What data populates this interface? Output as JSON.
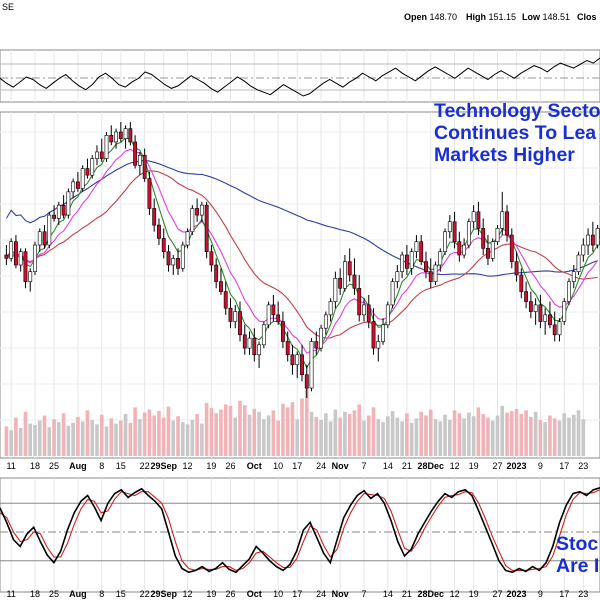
{
  "ticker_fragment": "SE",
  "quote": {
    "open_label": "Open",
    "open_value": "148.70",
    "high_label": "High",
    "high_value": "151.15",
    "low_label": "Low",
    "low_value": "148.51",
    "close_label": "Clos"
  },
  "headline": {
    "line1": "Technology Secto",
    "line2": "Continues To Lea",
    "line3": "Markets Higher"
  },
  "callout": {
    "line1": "Stoc",
    "line2": "Are I"
  },
  "colors": {
    "up_candle": "#ffffff",
    "down_candle": "#c8102e",
    "wick": "#000000",
    "ema_short": "#2e8b2e",
    "ema_mid": "#e040e0",
    "sma_mid": "#c0404a",
    "sma_long": "#3040a0",
    "volume_up": "#c8c8c8",
    "volume_down": "#f0b4b8",
    "stoch_k": "#000000",
    "stoch_d": "#d02020",
    "text_accent": "#1a2fd0"
  },
  "chart_data": [
    {
      "type": "line",
      "panel": "indicator-top",
      "y": [
        47,
        43,
        40,
        44,
        48,
        46,
        42,
        39,
        43,
        47,
        50,
        45,
        41,
        38,
        42,
        48,
        51,
        47,
        42,
        40,
        44,
        47,
        52,
        50,
        46,
        42,
        39,
        41,
        45,
        49,
        46,
        43,
        39,
        36,
        40,
        44,
        48,
        45,
        41,
        38,
        36,
        34,
        38,
        42,
        39,
        36,
        33,
        35,
        39,
        43,
        46,
        43,
        40,
        44,
        47,
        51,
        48,
        45,
        49,
        52,
        55,
        51,
        48,
        45,
        49,
        53,
        56,
        53,
        50,
        47,
        51,
        55,
        52,
        49,
        46,
        50,
        53,
        50,
        47,
        51,
        54,
        57,
        55,
        52,
        56,
        59,
        57,
        55,
        58,
        61,
        59,
        63
      ]
    },
    {
      "type": "candlestick",
      "panel": "price",
      "x_tick_labels": [
        "11",
        "18",
        "25",
        "Aug",
        "8",
        "15",
        "22",
        "29Sep",
        "12",
        "19",
        "26",
        "Oct",
        "10",
        "17",
        "24",
        "Nov",
        "7",
        "14",
        "21",
        "28Dec",
        "12",
        "19",
        "27",
        "2023",
        "9",
        "17",
        "23"
      ],
      "candles": [
        [
          118,
          121,
          115,
          117
        ],
        [
          117,
          123,
          116,
          122
        ],
        [
          122,
          124,
          114,
          115
        ],
        [
          115,
          120,
          113,
          119
        ],
        [
          119,
          120,
          108,
          110
        ],
        [
          110,
          114,
          107,
          113
        ],
        [
          113,
          122,
          112,
          121
        ],
        [
          121,
          126,
          119,
          125
        ],
        [
          125,
          127,
          120,
          121
        ],
        [
          121,
          131,
          120,
          130
        ],
        [
          130,
          133,
          128,
          129
        ],
        [
          129,
          134,
          127,
          133
        ],
        [
          133,
          136,
          129,
          130
        ],
        [
          130,
          138,
          129,
          137
        ],
        [
          137,
          141,
          135,
          140
        ],
        [
          140,
          143,
          137,
          138
        ],
        [
          138,
          145,
          137,
          144
        ],
        [
          144,
          147,
          141,
          142
        ],
        [
          142,
          148,
          141,
          147
        ],
        [
          147,
          151,
          145,
          149
        ],
        [
          149,
          153,
          146,
          147
        ],
        [
          147,
          155,
          146,
          154
        ],
        [
          154,
          157,
          151,
          152
        ],
        [
          152,
          156,
          150,
          155
        ],
        [
          155,
          158,
          152,
          153
        ],
        [
          153,
          157,
          150,
          156
        ],
        [
          156,
          158,
          151,
          152
        ],
        [
          152,
          154,
          144,
          145
        ],
        [
          145,
          149,
          142,
          148
        ],
        [
          148,
          150,
          140,
          141
        ],
        [
          141,
          143,
          130,
          132
        ],
        [
          132,
          135,
          125,
          127
        ],
        [
          127,
          129,
          121,
          123
        ],
        [
          123,
          126,
          117,
          119
        ],
        [
          119,
          121,
          113,
          115
        ],
        [
          115,
          118,
          112,
          117
        ],
        [
          117,
          120,
          112,
          114
        ],
        [
          114,
          122,
          113,
          121
        ],
        [
          121,
          126,
          120,
          125
        ],
        [
          125,
          133,
          124,
          132
        ],
        [
          132,
          135,
          128,
          130
        ],
        [
          130,
          134,
          128,
          133
        ],
        [
          133,
          134,
          117,
          119
        ],
        [
          119,
          121,
          113,
          115
        ],
        [
          115,
          117,
          108,
          110
        ],
        [
          110,
          114,
          106,
          107
        ],
        [
          107,
          110,
          100,
          102
        ],
        [
          102,
          105,
          96,
          98
        ],
        [
          98,
          103,
          96,
          101
        ],
        [
          101,
          104,
          92,
          94
        ],
        [
          94,
          97,
          88,
          90
        ],
        [
          90,
          95,
          88,
          93
        ],
        [
          93,
          96,
          86,
          88
        ],
        [
          88,
          92,
          84,
          91
        ],
        [
          91,
          98,
          90,
          97
        ],
        [
          97,
          104,
          96,
          103
        ],
        [
          103,
          106,
          98,
          100
        ],
        [
          100,
          104,
          97,
          98
        ],
        [
          98,
          101,
          90,
          92
        ],
        [
          92,
          95,
          86,
          88
        ],
        [
          88,
          91,
          82,
          85
        ],
        [
          85,
          89,
          81,
          88
        ],
        [
          88,
          91,
          80,
          82
        ],
        [
          82,
          85,
          75,
          78
        ],
        [
          78,
          93,
          77,
          92
        ],
        [
          92,
          95,
          88,
          90
        ],
        [
          90,
          97,
          89,
          96
        ],
        [
          96,
          101,
          94,
          100
        ],
        [
          100,
          105,
          98,
          104
        ],
        [
          104,
          113,
          102,
          111
        ],
        [
          111,
          114,
          106,
          108
        ],
        [
          108,
          118,
          107,
          116
        ],
        [
          116,
          120,
          110,
          112
        ],
        [
          112,
          117,
          106,
          108
        ],
        [
          108,
          112,
          98,
          100
        ],
        [
          100,
          105,
          98,
          103
        ],
        [
          103,
          106,
          96,
          98
        ],
        [
          98,
          102,
          88,
          90
        ],
        [
          90,
          94,
          86,
          92
        ],
        [
          92,
          99,
          91,
          97
        ],
        [
          97,
          104,
          96,
          103
        ],
        [
          103,
          111,
          102,
          110
        ],
        [
          110,
          115,
          108,
          113
        ],
        [
          113,
          119,
          111,
          118
        ],
        [
          118,
          121,
          112,
          114
        ],
        [
          114,
          120,
          112,
          119
        ],
        [
          119,
          124,
          117,
          122
        ],
        [
          122,
          124,
          115,
          116
        ],
        [
          116,
          119,
          111,
          113
        ],
        [
          113,
          117,
          108,
          110
        ],
        [
          110,
          116,
          109,
          115
        ],
        [
          115,
          120,
          113,
          119
        ],
        [
          119,
          126,
          118,
          125
        ],
        [
          125,
          130,
          123,
          128
        ],
        [
          128,
          131,
          120,
          122
        ],
        [
          122,
          125,
          116,
          118
        ],
        [
          118,
          123,
          117,
          121
        ],
        [
          121,
          129,
          120,
          128
        ],
        [
          128,
          133,
          126,
          131
        ],
        [
          131,
          134,
          124,
          126
        ],
        [
          126,
          129,
          118,
          120
        ],
        [
          120,
          124,
          115,
          117
        ],
        [
          117,
          123,
          116,
          122
        ],
        [
          122,
          127,
          121,
          126
        ],
        [
          126,
          137,
          124,
          131
        ],
        [
          131,
          133,
          122,
          124
        ],
        [
          124,
          126,
          114,
          116
        ],
        [
          116,
          119,
          110,
          112
        ],
        [
          112,
          114,
          105,
          107
        ],
        [
          107,
          110,
          102,
          104
        ],
        [
          104,
          107,
          99,
          101
        ],
        [
          101,
          105,
          97,
          103
        ],
        [
          103,
          106,
          96,
          98
        ],
        [
          98,
          102,
          94,
          100
        ],
        [
          100,
          104,
          96,
          97
        ],
        [
          97,
          101,
          92,
          94
        ],
        [
          94,
          99,
          92,
          98
        ],
        [
          98,
          105,
          97,
          104
        ],
        [
          104,
          111,
          103,
          110
        ],
        [
          110,
          115,
          108,
          113
        ],
        [
          113,
          119,
          112,
          118
        ],
        [
          118,
          123,
          116,
          121
        ],
        [
          121,
          126,
          118,
          124
        ],
        [
          124,
          128,
          119,
          121
        ],
        [
          121,
          127,
          120,
          126
        ]
      ],
      "volume": [
        40,
        35,
        52,
        38,
        60,
        44,
        42,
        48,
        55,
        39,
        50,
        46,
        58,
        41,
        45,
        53,
        47,
        62,
        49,
        43,
        56,
        40,
        51,
        44,
        48,
        57,
        45,
        66,
        50,
        59,
        63,
        55,
        61,
        52,
        67,
        48,
        54,
        46,
        43,
        49,
        57,
        44,
        72,
        65,
        58,
        63,
        70,
        68,
        52,
        75,
        69,
        56,
        64,
        60,
        50,
        55,
        62,
        48,
        71,
        66,
        73,
        50,
        78,
        95,
        60,
        53,
        49,
        58,
        47,
        63,
        52,
        60,
        57,
        62,
        70,
        48,
        55,
        66,
        50,
        46,
        54,
        61,
        52,
        47,
        58,
        45,
        51,
        60,
        55,
        63,
        50,
        47,
        56,
        49,
        62,
        58,
        51,
        59,
        54,
        66,
        57,
        52,
        48,
        55,
        68,
        59,
        61,
        64,
        57,
        62,
        53,
        60,
        49,
        46,
        55,
        51,
        48,
        58,
        52,
        56,
        62,
        50
      ],
      "overlays": [
        {
          "kind": "ema-short",
          "period_hint": "short"
        },
        {
          "kind": "ema-mid",
          "period_hint": "mid"
        },
        {
          "kind": "sma-mid",
          "period_hint": "50"
        },
        {
          "kind": "sma-long",
          "period_hint": "200"
        }
      ],
      "grid": true
    },
    {
      "type": "line",
      "panel": "stochastics",
      "ylim": [
        0,
        100
      ],
      "series": [
        {
          "values": [
            75,
            60,
            42,
            35,
            48,
            55,
            40,
            26,
            18,
            30,
            52,
            70,
            82,
            88,
            76,
            62,
            80,
            90,
            94,
            86,
            91,
            95,
            88,
            82,
            74,
            50,
            25,
            12,
            8,
            10,
            14,
            9,
            12,
            18,
            11,
            8,
            15,
            22,
            35,
            28,
            20,
            14,
            10,
            16,
            30,
            52,
            60,
            44,
            28,
            18,
            42,
            65,
            78,
            88,
            93,
            85,
            90,
            80,
            62,
            40,
            25,
            32,
            48,
            60,
            72,
            82,
            90,
            86,
            92,
            94,
            88,
            72,
            55,
            38,
            20,
            10,
            8,
            12,
            9,
            14,
            10,
            18,
            35,
            60,
            78,
            90,
            92,
            88,
            94,
            96
          ]
        },
        {
          "values": [
            70,
            65,
            50,
            40,
            42,
            50,
            48,
            34,
            24,
            24,
            38,
            58,
            74,
            84,
            82,
            70,
            72,
            84,
            92,
            90,
            88,
            92,
            92,
            86,
            80,
            64,
            40,
            20,
            12,
            10,
            12,
            11,
            11,
            14,
            14,
            10,
            12,
            18,
            28,
            30,
            24,
            18,
            13,
            13,
            22,
            40,
            56,
            52,
            36,
            24,
            32,
            54,
            70,
            82,
            90,
            89,
            88,
            85,
            72,
            52,
            33,
            30,
            40,
            54,
            66,
            77,
            86,
            88,
            89,
            92,
            91,
            80,
            64,
            46,
            30,
            15,
            10,
            10,
            10,
            11,
            12,
            14,
            25,
            46,
            68,
            84,
            91,
            90,
            91,
            94
          ]
        }
      ],
      "x_tick_labels": [
        "11",
        "18",
        "25",
        "Aug",
        "8",
        "15",
        "22",
        "29Sep",
        "12",
        "19",
        "26",
        "Oct",
        "10",
        "17",
        "24",
        "Nov",
        "7",
        "14",
        "21",
        "28Dec",
        "12",
        "19",
        "27",
        "2023",
        "9",
        "17",
        "23"
      ]
    }
  ]
}
